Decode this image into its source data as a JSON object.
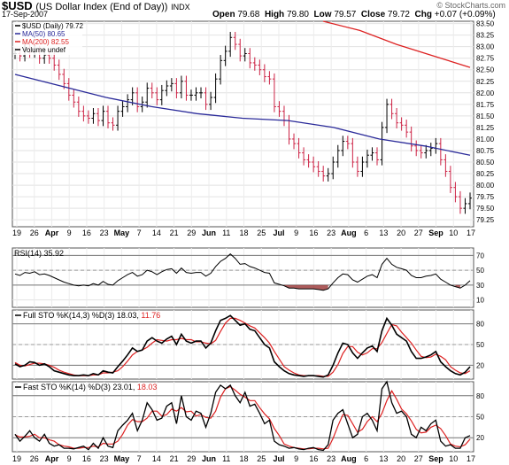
{
  "header": {
    "symbol": "$USD",
    "name": "(US Dollar Index (End of Day))",
    "exchange": "INDX",
    "date": "17-Sep-2007",
    "brand": "© StockCharts.com",
    "open_label": "Open",
    "open": "79.68",
    "high_label": "High",
    "high": "79.80",
    "low_label": "Low",
    "low": "79.57",
    "close_label": "Close",
    "close": "79.72",
    "chg_label": "Chg",
    "chg": "+0.07 (+0.09%)"
  },
  "colors": {
    "price": "#000000",
    "down": "#cc2244",
    "ma50": "#2a2a99",
    "ma200": "#dd2222",
    "sto_d": "#dd2222",
    "rsi_fill": "#993333"
  },
  "x_labels": [
    "19",
    "26",
    "Apr",
    "9",
    "16",
    "23",
    "May",
    "7",
    "14",
    "21",
    "29",
    "Jun",
    "11",
    "18",
    "25",
    "Jul",
    "9",
    "16",
    "23",
    "Aug",
    "6",
    "13",
    "20",
    "27",
    "Sep",
    "10",
    "17"
  ],
  "chart_data": [
    {
      "type": "ohlc",
      "panel": "price",
      "legend": [
        "$USD (Daily) 79.72",
        "MA(50) 80.65",
        "MA(200) 82.55",
        "Volume undef"
      ],
      "y_ticks": [
        "83.50",
        "83.25",
        "83.00",
        "82.75",
        "82.50",
        "82.25",
        "82.00",
        "81.75",
        "81.50",
        "81.25",
        "81.00",
        "80.75",
        "80.50",
        "80.25",
        "80.00",
        "79.75",
        "79.50",
        "79.25"
      ],
      "ylim": [
        79.1,
        83.55
      ],
      "series": [
        {
          "name": "$USD (Daily) 79.72",
          "values": [
            82.85,
            82.8,
            82.95,
            82.88,
            82.9,
            82.75,
            82.82,
            82.75,
            82.6,
            82.4,
            82.2,
            81.95,
            81.8,
            81.6,
            81.5,
            81.45,
            81.55,
            81.4,
            81.6,
            81.35,
            81.3,
            81.6,
            81.7,
            81.85,
            82.0,
            81.7,
            81.8,
            82.1,
            82.0,
            81.85,
            82.05,
            82.15,
            82.2,
            82.0,
            82.25,
            81.95,
            81.95,
            82.0,
            82.0,
            81.75,
            81.9,
            82.3,
            82.7,
            82.9,
            83.2,
            83.05,
            82.8,
            82.85,
            82.65,
            82.6,
            82.5,
            82.35,
            82.3,
            81.7,
            81.6,
            81.4,
            81.0,
            80.9,
            80.7,
            80.55,
            80.5,
            80.4,
            80.3,
            80.2,
            80.25,
            80.5,
            80.75,
            80.95,
            80.9,
            80.5,
            80.3,
            80.5,
            80.65,
            80.7,
            80.55,
            81.25,
            81.75,
            81.55,
            81.35,
            81.3,
            81.15,
            80.85,
            80.75,
            80.7,
            80.75,
            80.8,
            80.9,
            80.55,
            80.3,
            79.95,
            79.75,
            79.5,
            79.6,
            79.72
          ]
        },
        {
          "name": "MA(50) 80.65",
          "values": [
            82.4,
            82.15,
            81.9,
            81.7,
            81.55,
            81.45,
            81.4,
            81.25,
            81.0,
            80.85,
            80.65
          ]
        },
        {
          "name": "MA(200) 82.55",
          "values": [
            83.55,
            83.35,
            83.05,
            82.8,
            82.55
          ]
        }
      ]
    },
    {
      "type": "line",
      "panel": "rsi",
      "legend": "RSI(14) 35.92",
      "y_ticks": [
        "70",
        "50",
        "30",
        "10"
      ],
      "ylim": [
        0,
        80
      ],
      "series": [
        {
          "name": "RSI(14) 35.92",
          "values": [
            45,
            43,
            47,
            46,
            48,
            44,
            45,
            43,
            40,
            37,
            34,
            32,
            30,
            29,
            30,
            29,
            32,
            30,
            35,
            31,
            30,
            36,
            40,
            44,
            47,
            42,
            44,
            50,
            48,
            44,
            48,
            51,
            52,
            46,
            53,
            47,
            46,
            47,
            47,
            42,
            46,
            55,
            62,
            66,
            72,
            66,
            58,
            59,
            55,
            53,
            50,
            47,
            46,
            33,
            31,
            29,
            26,
            26,
            25,
            25,
            25,
            25,
            24,
            23,
            25,
            33,
            40,
            45,
            44,
            37,
            34,
            38,
            42,
            44,
            40,
            58,
            66,
            58,
            54,
            52,
            50,
            43,
            40,
            40,
            42,
            43,
            45,
            38,
            34,
            30,
            28,
            26,
            30,
            36
          ]
        }
      ]
    },
    {
      "type": "line",
      "panel": "full_sto",
      "legend": [
        "Full STO %K(14,3) %D(3) 18.03,",
        "11.76"
      ],
      "y_ticks": [
        "80",
        "50",
        "20"
      ],
      "ylim": [
        0,
        100
      ],
      "series": [
        {
          "name": "%K 18.03",
          "values": [
            22,
            18,
            20,
            25,
            24,
            20,
            22,
            18,
            12,
            10,
            8,
            6,
            5,
            5,
            6,
            5,
            8,
            6,
            12,
            10,
            9,
            18,
            26,
            35,
            45,
            40,
            42,
            55,
            60,
            55,
            52,
            58,
            62,
            50,
            65,
            55,
            52,
            55,
            55,
            45,
            52,
            70,
            85,
            88,
            92,
            85,
            78,
            80,
            72,
            70,
            60,
            50,
            45,
            25,
            18,
            12,
            8,
            6,
            5,
            4,
            5,
            5,
            4,
            3,
            6,
            20,
            38,
            52,
            50,
            38,
            30,
            38,
            45,
            48,
            40,
            70,
            88,
            78,
            65,
            60,
            55,
            40,
            30,
            30,
            32,
            35,
            40,
            25,
            18,
            12,
            8,
            6,
            10,
            18
          ]
        },
        {
          "name": "%D 11.76",
          "values": [
            24,
            20,
            19,
            21,
            23,
            23,
            22,
            20,
            17,
            13,
            10,
            8,
            6,
            5,
            5,
            5,
            6,
            6,
            9,
            9,
            10,
            12,
            18,
            26,
            35,
            40,
            42,
            46,
            52,
            57,
            56,
            55,
            57,
            57,
            59,
            57,
            57,
            54,
            54,
            52,
            51,
            56,
            69,
            81,
            88,
            88,
            85,
            81,
            77,
            74,
            67,
            60,
            52,
            40,
            29,
            18,
            13,
            9,
            6,
            5,
            5,
            5,
            5,
            4,
            4,
            10,
            21,
            37,
            47,
            47,
            39,
            35,
            38,
            44,
            44,
            53,
            66,
            79,
            77,
            68,
            60,
            52,
            42,
            33,
            31,
            32,
            36,
            33,
            28,
            18,
            13,
            9,
            8,
            12
          ]
        }
      ]
    },
    {
      "type": "line",
      "panel": "fast_sto",
      "legend": [
        "Fast STO %K(14) %D(3) 23.01,",
        "18.03"
      ],
      "y_ticks": [
        "80",
        "50",
        "20"
      ],
      "ylim": [
        0,
        100
      ],
      "series": [
        {
          "name": "%K 23.01",
          "values": [
            25,
            15,
            22,
            30,
            20,
            15,
            25,
            12,
            8,
            10,
            5,
            5,
            4,
            6,
            8,
            3,
            12,
            5,
            20,
            8,
            6,
            30,
            38,
            45,
            55,
            30,
            45,
            70,
            60,
            45,
            48,
            65,
            70,
            40,
            80,
            50,
            45,
            58,
            55,
            35,
            55,
            85,
            95,
            90,
            95,
            80,
            70,
            85,
            65,
            68,
            55,
            40,
            45,
            15,
            10,
            8,
            5,
            6,
            4,
            3,
            5,
            6,
            3,
            2,
            10,
            45,
            55,
            60,
            40,
            20,
            25,
            50,
            55,
            45,
            30,
            90,
            100,
            70,
            55,
            58,
            50,
            25,
            20,
            35,
            30,
            40,
            45,
            15,
            8,
            10,
            5,
            5,
            20,
            23
          ]
        },
        {
          "name": "%D 18.03",
          "values": [
            24,
            21,
            21,
            22,
            25,
            20,
            20,
            17,
            15,
            10,
            8,
            7,
            5,
            5,
            6,
            6,
            8,
            7,
            12,
            11,
            11,
            15,
            25,
            38,
            46,
            43,
            43,
            48,
            58,
            58,
            51,
            53,
            61,
            58,
            63,
            57,
            58,
            51,
            53,
            49,
            48,
            58,
            78,
            90,
            93,
            88,
            82,
            78,
            73,
            73,
            63,
            54,
            47,
            33,
            23,
            11,
            8,
            6,
            5,
            4,
            4,
            5,
            5,
            4,
            5,
            19,
            37,
            53,
            52,
            40,
            28,
            32,
            43,
            50,
            43,
            55,
            73,
            87,
            75,
            61,
            54,
            44,
            32,
            27,
            28,
            35,
            38,
            33,
            23,
            11,
            8,
            7,
            10,
            18
          ]
        }
      ]
    }
  ]
}
